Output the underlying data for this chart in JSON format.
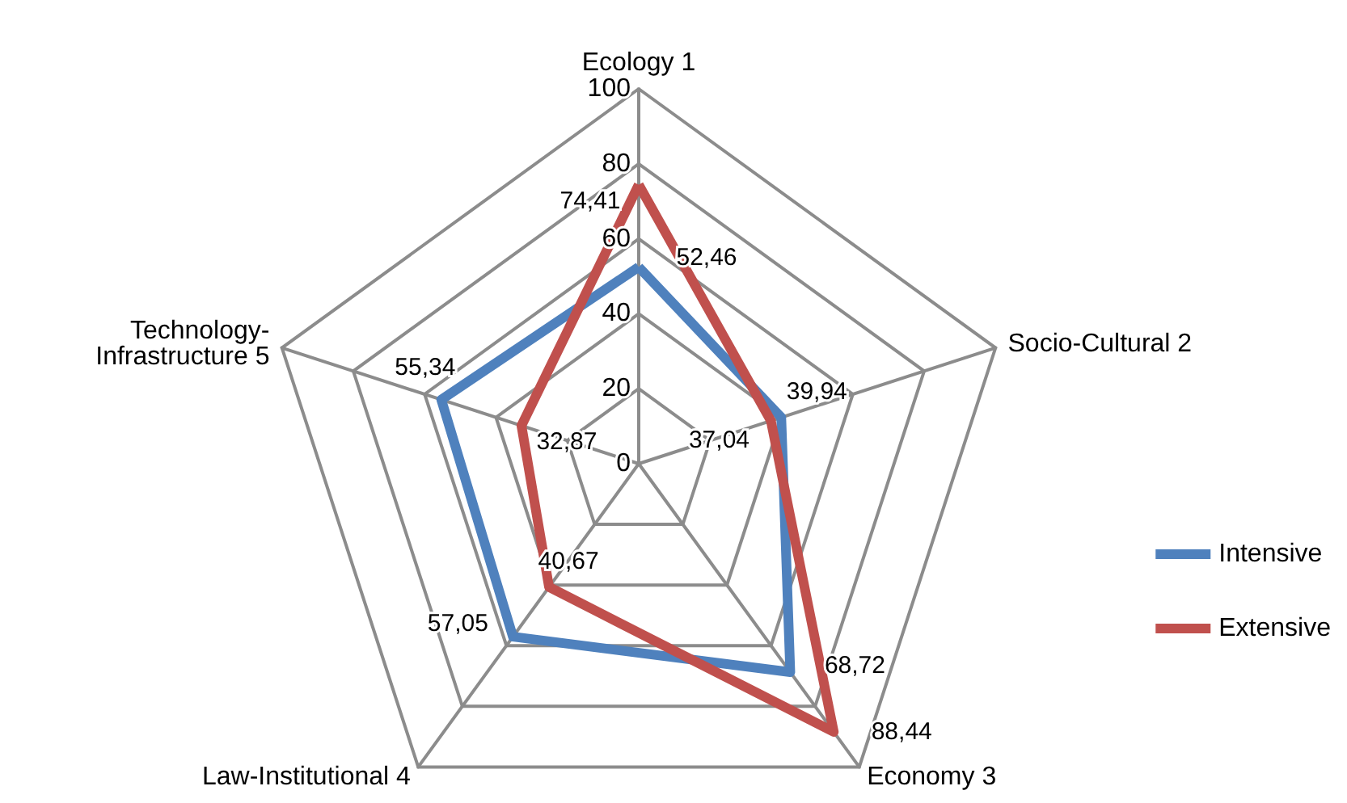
{
  "chart_data": {
    "type": "radar",
    "categories": [
      "Ecology 1",
      "Socio-Cultural 2",
      "Economy 3",
      "Law-Institutional 4",
      "Technology-\nInfrastructure 5"
    ],
    "series": [
      {
        "name": "Intensive",
        "color": "#4f81bd",
        "values": [
          52.46,
          39.94,
          68.72,
          57.05,
          55.34
        ],
        "value_labels": [
          "52,46",
          "39,94",
          "68,72",
          "57,05",
          "55,34"
        ]
      },
      {
        "name": "Extensive",
        "color": "#c0504d",
        "values": [
          74.41,
          37.04,
          88.44,
          40.67,
          32.87
        ],
        "value_labels": [
          "74,41",
          "37,04",
          "88,44",
          "40,67",
          "32,87"
        ]
      }
    ],
    "ylim": [
      0,
      100
    ],
    "yticks": [
      0,
      20,
      40,
      60,
      80,
      100
    ],
    "grid": true,
    "legend": "right",
    "marker": "none",
    "line_style": "solid"
  }
}
